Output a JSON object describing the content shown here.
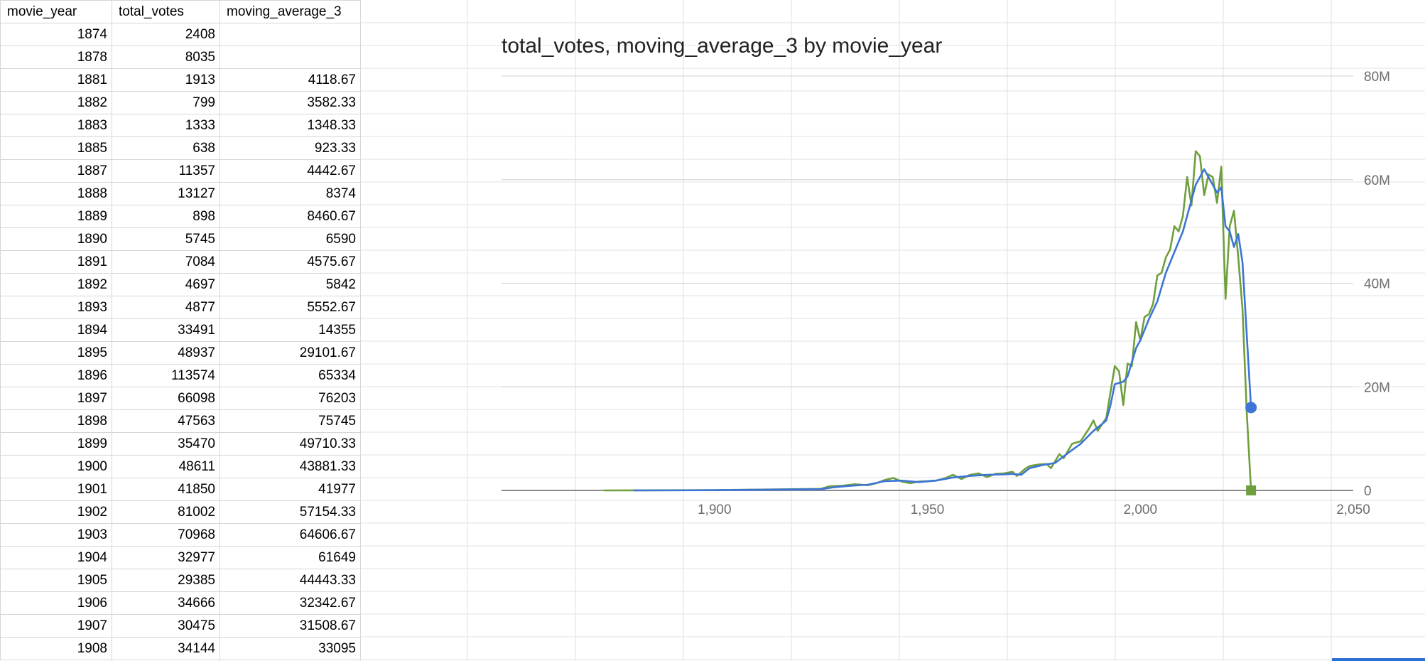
{
  "table": {
    "headers": [
      "movie_year",
      "total_votes",
      "moving_average_3"
    ],
    "rows": [
      [
        "1874",
        "2408",
        ""
      ],
      [
        "1878",
        "8035",
        ""
      ],
      [
        "1881",
        "1913",
        "4118.67"
      ],
      [
        "1882",
        "799",
        "3582.33"
      ],
      [
        "1883",
        "1333",
        "1348.33"
      ],
      [
        "1885",
        "638",
        "923.33"
      ],
      [
        "1887",
        "11357",
        "4442.67"
      ],
      [
        "1888",
        "13127",
        "8374"
      ],
      [
        "1889",
        "898",
        "8460.67"
      ],
      [
        "1890",
        "5745",
        "6590"
      ],
      [
        "1891",
        "7084",
        "4575.67"
      ],
      [
        "1892",
        "4697",
        "5842"
      ],
      [
        "1893",
        "4877",
        "5552.67"
      ],
      [
        "1894",
        "33491",
        "14355"
      ],
      [
        "1895",
        "48937",
        "29101.67"
      ],
      [
        "1896",
        "113574",
        "65334"
      ],
      [
        "1897",
        "66098",
        "76203"
      ],
      [
        "1898",
        "47563",
        "75745"
      ],
      [
        "1899",
        "35470",
        "49710.33"
      ],
      [
        "1900",
        "48611",
        "43881.33"
      ],
      [
        "1901",
        "41850",
        "41977"
      ],
      [
        "1902",
        "81002",
        "57154.33"
      ],
      [
        "1903",
        "70968",
        "64606.67"
      ],
      [
        "1904",
        "32977",
        "61649"
      ],
      [
        "1905",
        "29385",
        "44443.33"
      ],
      [
        "1906",
        "34666",
        "32342.67"
      ],
      [
        "1907",
        "30475",
        "31508.67"
      ],
      [
        "1908",
        "34144",
        "33095"
      ]
    ]
  },
  "chart_data": {
    "type": "line",
    "title": "total_votes, moving_average_3 by movie_year",
    "xlabel": "",
    "ylabel": "",
    "xlim": [
      1850,
      2050
    ],
    "ylim": [
      0,
      80000000
    ],
    "x_ticks": [
      "1,900",
      "1,950",
      "2,000",
      "2,050"
    ],
    "y_ticks": [
      "0",
      "20M",
      "40M",
      "60M",
      "80M"
    ],
    "grid": true,
    "legend": "none",
    "series": [
      {
        "color": "#6f9f3c",
        "marker": "square",
        "points": [
          [
            1874,
            2408
          ],
          [
            1900,
            48611
          ],
          [
            1925,
            300000
          ],
          [
            1927,
            800000
          ],
          [
            1930,
            900000
          ],
          [
            1933,
            1200000
          ],
          [
            1936,
            1000000
          ],
          [
            1938,
            1400000
          ],
          [
            1940,
            2000000
          ],
          [
            1942,
            2400000
          ],
          [
            1944,
            1700000
          ],
          [
            1946,
            1400000
          ],
          [
            1948,
            1700000
          ],
          [
            1950,
            1800000
          ],
          [
            1952,
            1900000
          ],
          [
            1954,
            2300000
          ],
          [
            1956,
            3000000
          ],
          [
            1958,
            2200000
          ],
          [
            1960,
            3000000
          ],
          [
            1962,
            3300000
          ],
          [
            1964,
            2600000
          ],
          [
            1966,
            3200000
          ],
          [
            1968,
            3300000
          ],
          [
            1970,
            3600000
          ],
          [
            1971,
            2800000
          ],
          [
            1973,
            4200000
          ],
          [
            1974,
            4700000
          ],
          [
            1976,
            5000000
          ],
          [
            1978,
            5100000
          ],
          [
            1979,
            4300000
          ],
          [
            1981,
            7000000
          ],
          [
            1982,
            6200000
          ],
          [
            1984,
            9000000
          ],
          [
            1986,
            9500000
          ],
          [
            1988,
            12000000
          ],
          [
            1989,
            13500000
          ],
          [
            1990,
            11500000
          ],
          [
            1992,
            14000000
          ],
          [
            1993,
            19000000
          ],
          [
            1994,
            24000000
          ],
          [
            1995,
            23000000
          ],
          [
            1996,
            16500000
          ],
          [
            1997,
            24500000
          ],
          [
            1998,
            24000000
          ],
          [
            1999,
            32500000
          ],
          [
            2000,
            29000000
          ],
          [
            2001,
            33500000
          ],
          [
            2002,
            34000000
          ],
          [
            2003,
            36000000
          ],
          [
            2004,
            41500000
          ],
          [
            2005,
            42000000
          ],
          [
            2006,
            45000000
          ],
          [
            2007,
            46500000
          ],
          [
            2008,
            51000000
          ],
          [
            2009,
            50000000
          ],
          [
            2010,
            53000000
          ],
          [
            2011,
            60500000
          ],
          [
            2012,
            55000000
          ],
          [
            2013,
            65500000
          ],
          [
            2014,
            64500000
          ],
          [
            2015,
            57000000
          ],
          [
            2016,
            61000000
          ],
          [
            2017,
            60500000
          ],
          [
            2018,
            55500000
          ],
          [
            2019,
            62500000
          ],
          [
            2020,
            37000000
          ],
          [
            2021,
            51000000
          ],
          [
            2022,
            54000000
          ],
          [
            2023,
            45000000
          ],
          [
            2024,
            35000000
          ],
          [
            2025,
            15000000
          ],
          [
            2026,
            0
          ]
        ]
      },
      {
        "color": "#3c75d6",
        "marker": "circle",
        "points": [
          [
            1881,
            4118.67
          ],
          [
            1900,
            43881.33
          ],
          [
            1925,
            250000
          ],
          [
            1928,
            600000
          ],
          [
            1932,
            900000
          ],
          [
            1936,
            1100000
          ],
          [
            1940,
            1800000
          ],
          [
            1944,
            1900000
          ],
          [
            1948,
            1600000
          ],
          [
            1952,
            1900000
          ],
          [
            1956,
            2500000
          ],
          [
            1960,
            2800000
          ],
          [
            1964,
            3000000
          ],
          [
            1968,
            3100000
          ],
          [
            1970,
            3200000
          ],
          [
            1972,
            3000000
          ],
          [
            1974,
            4300000
          ],
          [
            1977,
            4900000
          ],
          [
            1980,
            5300000
          ],
          [
            1983,
            7200000
          ],
          [
            1986,
            9000000
          ],
          [
            1989,
            11500000
          ],
          [
            1991,
            12800000
          ],
          [
            1992,
            13500000
          ],
          [
            1993,
            16500000
          ],
          [
            1994,
            20500000
          ],
          [
            1996,
            21000000
          ],
          [
            1997,
            22000000
          ],
          [
            1999,
            27500000
          ],
          [
            2000,
            29000000
          ],
          [
            2002,
            33000000
          ],
          [
            2004,
            36500000
          ],
          [
            2006,
            42000000
          ],
          [
            2008,
            46000000
          ],
          [
            2010,
            50000000
          ],
          [
            2012,
            56000000
          ],
          [
            2013,
            59000000
          ],
          [
            2015,
            62000000
          ],
          [
            2017,
            59000000
          ],
          [
            2018,
            57500000
          ],
          [
            2019,
            58500000
          ],
          [
            2020,
            51000000
          ],
          [
            2021,
            50000000
          ],
          [
            2022,
            47000000
          ],
          [
            2023,
            49500000
          ],
          [
            2024,
            44000000
          ],
          [
            2026,
            16000000
          ]
        ]
      }
    ]
  }
}
